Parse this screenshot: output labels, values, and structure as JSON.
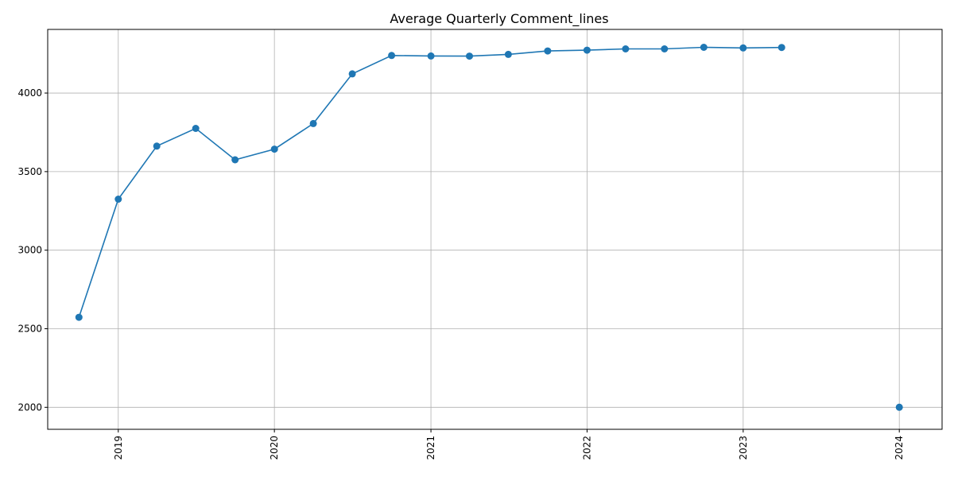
{
  "chart_data": {
    "type": "line",
    "title": "Average Quarterly Comment_lines",
    "xlabel": "",
    "ylabel": "",
    "x_ticks": [
      "2019",
      "2020",
      "2021",
      "2022",
      "2023",
      "2024"
    ],
    "y_ticks": [
      2000,
      2500,
      3000,
      3500,
      4000
    ],
    "xlim": [
      "2018-07-20",
      "2024-04-10"
    ],
    "ylim": [
      1860,
      4405
    ],
    "grid": true,
    "series": [
      {
        "color": "#1f77b4",
        "marker": "circle",
        "segments": [
          [
            {
              "x": "2018-10-01",
              "y": 2573
            },
            {
              "x": "2019-01-01",
              "y": 3325
            },
            {
              "x": "2019-04-01",
              "y": 3662
            },
            {
              "x": "2019-07-01",
              "y": 3775
            },
            {
              "x": "2019-10-01",
              "y": 3575
            },
            {
              "x": "2020-01-01",
              "y": 3643
            },
            {
              "x": "2020-04-01",
              "y": 3806
            },
            {
              "x": "2020-07-01",
              "y": 4122
            },
            {
              "x": "2020-10-01",
              "y": 4239
            },
            {
              "x": "2021-01-01",
              "y": 4236
            },
            {
              "x": "2021-04-01",
              "y": 4235
            },
            {
              "x": "2021-07-01",
              "y": 4246
            },
            {
              "x": "2021-10-01",
              "y": 4268
            },
            {
              "x": "2022-01-01",
              "y": 4273
            },
            {
              "x": "2022-04-01",
              "y": 4281
            },
            {
              "x": "2022-07-01",
              "y": 4281
            },
            {
              "x": "2022-10-01",
              "y": 4291
            },
            {
              "x": "2023-01-01",
              "y": 4287
            },
            {
              "x": "2023-04-01",
              "y": 4290
            }
          ],
          [
            {
              "x": "2024-01-01",
              "y": 2000
            }
          ]
        ]
      }
    ]
  }
}
